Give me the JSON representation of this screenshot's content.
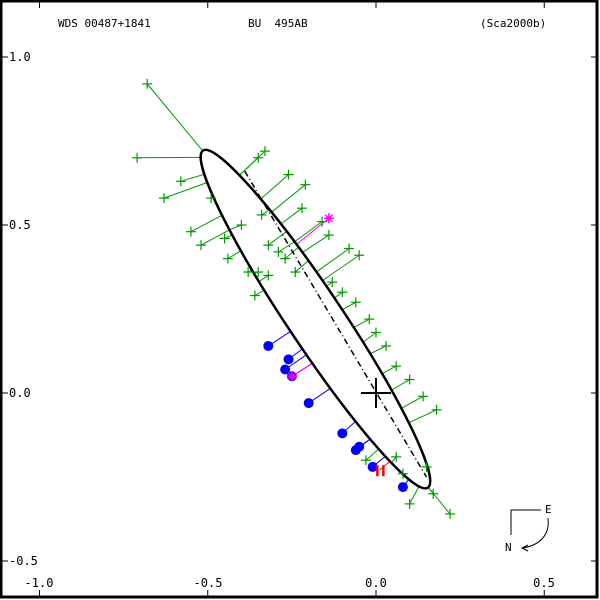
{
  "header": {
    "wds": "WDS 00487+1841",
    "discoverer": "BU  495AB",
    "reference": "(Sca2000b)"
  },
  "axes": {
    "y_ticks": [
      {
        "label": "1.0",
        "value": 1.0
      },
      {
        "label": "0.5",
        "value": 0.5
      },
      {
        "label": "0.0",
        "value": 0.0
      },
      {
        "label": "-0.5",
        "value": -0.5
      }
    ],
    "x_ticks": [
      {
        "label": "-1.0",
        "value": -1.0
      },
      {
        "label": "-0.5",
        "value": -0.5
      },
      {
        "label": "0.0",
        "value": 0.0
      },
      {
        "label": "0.5",
        "value": 0.5
      }
    ]
  },
  "compass": {
    "east": "E",
    "north": "N"
  },
  "colors": {
    "orbit": "#000000",
    "micrometer": "#009900",
    "speckle": "#0000ff",
    "hipparcos": "#ff00ff",
    "interferometry": "#ff0000",
    "frame": "#000000"
  },
  "chart_data": {
    "type": "scatter",
    "title": "WDS 00487+1841  BU 495AB  (Sca2000b)",
    "xlabel": "",
    "ylabel": "",
    "xlim": [
      -1.1,
      0.66
    ],
    "ylim": [
      -0.57,
      1.17
    ],
    "grid": false,
    "orbit_ellipse": {
      "center": [
        -0.18,
        0.22
      ],
      "semi_major": 0.603,
      "semi_minor": 0.082,
      "angle_deg": 56.3,
      "line_of_nodes": [
        [
          -0.39,
          0.66
        ],
        [
          0.15,
          -0.25
        ]
      ],
      "primary": [
        0.0,
        0.0
      ]
    },
    "series": [
      {
        "name": "micrometer",
        "marker": "+",
        "points": [
          [
            -0.68,
            0.92
          ],
          [
            -0.71,
            0.7
          ],
          [
            -0.58,
            0.63
          ],
          [
            -0.63,
            0.58
          ],
          [
            -0.49,
            0.58
          ],
          [
            -0.55,
            0.48
          ],
          [
            -0.52,
            0.44
          ],
          [
            -0.45,
            0.46
          ],
          [
            -0.44,
            0.4
          ],
          [
            -0.4,
            0.5
          ],
          [
            -0.34,
            0.53
          ],
          [
            -0.32,
            0.44
          ],
          [
            -0.38,
            0.36
          ],
          [
            -0.35,
            0.36
          ],
          [
            -0.32,
            0.35
          ],
          [
            -0.29,
            0.42
          ],
          [
            -0.26,
            0.65
          ],
          [
            -0.21,
            0.62
          ],
          [
            -0.35,
            0.7
          ],
          [
            -0.33,
            0.72
          ],
          [
            -0.22,
            0.55
          ],
          [
            -0.16,
            0.51
          ],
          [
            -0.14,
            0.47
          ],
          [
            -0.08,
            0.43
          ],
          [
            -0.05,
            0.41
          ],
          [
            -0.13,
            0.33
          ],
          [
            -0.1,
            0.3
          ],
          [
            -0.06,
            0.27
          ],
          [
            -0.02,
            0.22
          ],
          [
            0.0,
            0.18
          ],
          [
            0.03,
            0.14
          ],
          [
            0.06,
            0.08
          ],
          [
            0.1,
            0.04
          ],
          [
            0.14,
            -0.01
          ],
          [
            0.18,
            -0.05
          ],
          [
            -0.03,
            -0.2
          ],
          [
            0.06,
            -0.19
          ],
          [
            0.08,
            -0.24
          ],
          [
            0.1,
            -0.33
          ],
          [
            0.17,
            -0.3
          ],
          [
            0.22,
            -0.36
          ],
          [
            0.15,
            -0.22
          ],
          [
            -0.27,
            0.4
          ],
          [
            -0.24,
            0.36
          ],
          [
            -0.36,
            0.29
          ]
        ]
      },
      {
        "name": "speckle",
        "marker": "filled-circle",
        "points": [
          [
            -0.32,
            0.14
          ],
          [
            -0.26,
            0.1
          ],
          [
            -0.27,
            0.07
          ],
          [
            -0.25,
            0.05
          ],
          [
            -0.2,
            -0.03
          ],
          [
            -0.1,
            -0.12
          ],
          [
            -0.06,
            -0.17
          ],
          [
            -0.05,
            -0.16
          ],
          [
            -0.01,
            -0.22
          ],
          [
            0.08,
            -0.28
          ]
        ]
      },
      {
        "name": "hipparcos",
        "marker": "*",
        "points": [
          [
            -0.14,
            0.52
          ],
          [
            -0.25,
            0.05
          ]
        ]
      },
      {
        "name": "interferometry",
        "marker": "I",
        "points": [
          [
            0.01,
            -0.23
          ]
        ]
      }
    ]
  }
}
